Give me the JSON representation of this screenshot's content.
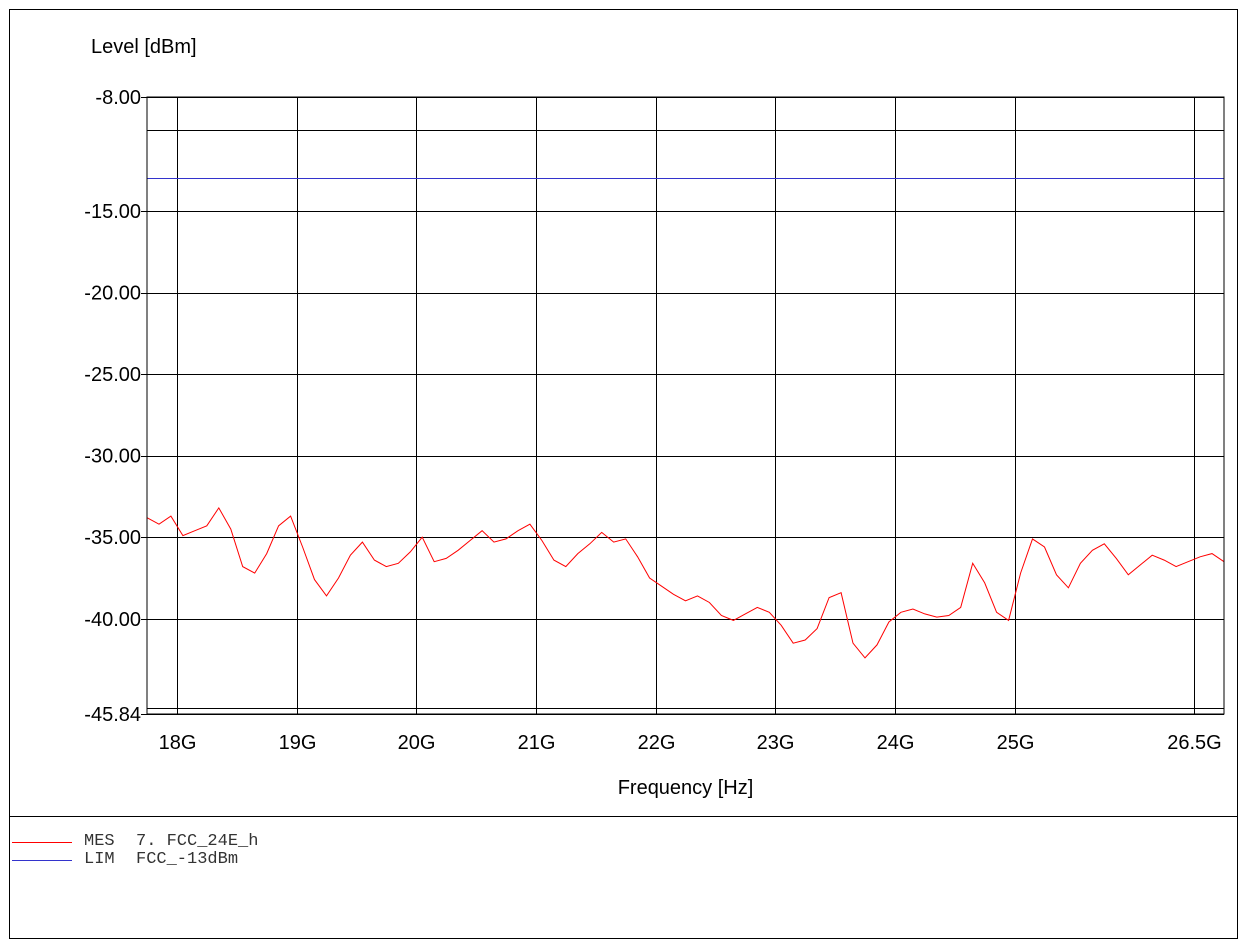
{
  "chart_data": {
    "type": "line",
    "ylabel": "Level [dBm]",
    "xlabel": "Frequency [Hz]",
    "ylim": [
      -45.84,
      -8.0
    ],
    "xlim": [
      17.75,
      26.75
    ],
    "yticks": [
      {
        "value": -8.0,
        "label": "-8.00"
      },
      {
        "value": -15.0,
        "label": "-15.00"
      },
      {
        "value": -20.0,
        "label": "-20.00"
      },
      {
        "value": -25.0,
        "label": "-25.00"
      },
      {
        "value": -30.0,
        "label": "-30.00"
      },
      {
        "value": -35.0,
        "label": "-35.00"
      },
      {
        "value": -40.0,
        "label": "-40.00"
      },
      {
        "value": -45.84,
        "label": "-45.84"
      }
    ],
    "xticks": [
      {
        "value": 18.0,
        "label": "18G"
      },
      {
        "value": 19.0,
        "label": "19G"
      },
      {
        "value": 20.0,
        "label": "20G"
      },
      {
        "value": 21.0,
        "label": "21G"
      },
      {
        "value": 22.0,
        "label": "22G"
      },
      {
        "value": 23.0,
        "label": "23G"
      },
      {
        "value": 24.0,
        "label": "24G"
      },
      {
        "value": 25.0,
        "label": "25G"
      },
      {
        "value": 26.5,
        "label": "26.5G"
      }
    ],
    "grid": true,
    "series": [
      {
        "name": "MES 7. FCC_24E_h",
        "color": "#ff0000",
        "x": [
          17.75,
          17.85,
          17.95,
          18.05,
          18.15,
          18.25,
          18.35,
          18.45,
          18.55,
          18.65,
          18.75,
          18.85,
          18.95,
          19.05,
          19.15,
          19.25,
          19.35,
          19.45,
          19.55,
          19.65,
          19.75,
          19.85,
          19.95,
          20.05,
          20.15,
          20.25,
          20.35,
          20.45,
          20.55,
          20.65,
          20.75,
          20.85,
          20.95,
          21.05,
          21.15,
          21.25,
          21.35,
          21.45,
          21.55,
          21.65,
          21.75,
          21.85,
          21.95,
          22.05,
          22.15,
          22.25,
          22.35,
          22.45,
          22.55,
          22.65,
          22.75,
          22.85,
          22.95,
          23.05,
          23.15,
          23.25,
          23.35,
          23.45,
          23.55,
          23.65,
          23.75,
          23.85,
          23.95,
          24.05,
          24.15,
          24.25,
          24.35,
          24.45,
          24.55,
          24.65,
          24.75,
          24.85,
          24.95,
          25.05,
          25.15,
          25.25,
          25.35,
          25.45,
          25.55,
          25.65,
          25.75,
          25.85,
          25.95,
          26.05,
          26.15,
          26.25,
          26.35,
          26.45,
          26.55,
          26.65,
          26.75
        ],
        "y": [
          -33.8,
          -34.2,
          -33.7,
          -34.9,
          -34.6,
          -34.3,
          -33.2,
          -34.5,
          -36.8,
          -37.2,
          -36.0,
          -34.3,
          -33.7,
          -35.6,
          -37.6,
          -38.6,
          -37.5,
          -36.1,
          -35.3,
          -36.4,
          -36.8,
          -36.6,
          -35.9,
          -35.0,
          -36.5,
          -36.3,
          -35.8,
          -35.2,
          -34.6,
          -35.3,
          -35.1,
          -34.6,
          -34.2,
          -35.2,
          -36.4,
          -36.8,
          -36.0,
          -35.4,
          -34.7,
          -35.3,
          -35.1,
          -36.2,
          -37.5,
          -38.0,
          -38.5,
          -38.9,
          -38.6,
          -39.0,
          -39.8,
          -40.1,
          -39.7,
          -39.3,
          -39.6,
          -40.4,
          -41.5,
          -41.3,
          -40.6,
          -38.7,
          -38.4,
          -41.5,
          -42.4,
          -41.6,
          -40.2,
          -39.6,
          -39.4,
          -39.7,
          -39.9,
          -39.8,
          -39.3,
          -36.6,
          -37.8,
          -39.6,
          -40.1,
          -37.2,
          -35.1,
          -35.6,
          -37.3,
          -38.1,
          -36.6,
          -35.8,
          -35.4,
          -36.3,
          -37.3,
          -36.7,
          -36.1,
          -36.4,
          -36.8,
          -36.5,
          -36.2,
          -36.0,
          -36.5
        ]
      },
      {
        "name": "LIM FCC_-13dBm",
        "color": "#3333cc",
        "x": [
          17.75,
          26.75
        ],
        "y": [
          -13.0,
          -13.0
        ]
      }
    ],
    "legend": [
      {
        "tag": "MES",
        "text": "7. FCC_24E_h",
        "color": "#ff0000"
      },
      {
        "tag": "LIM",
        "text": "FCC_-13dBm",
        "color": "#3333cc"
      }
    ],
    "legend_position": "bottom-left"
  }
}
